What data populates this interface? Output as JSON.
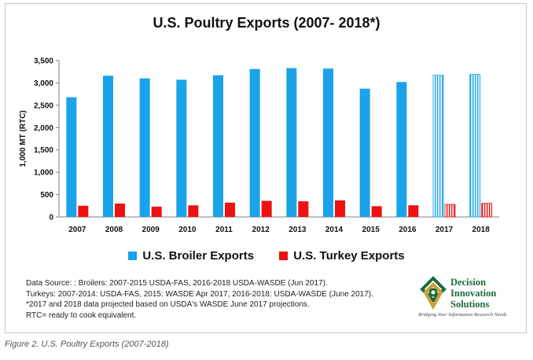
{
  "title": "U.S. Poultry Exports (2007- 2018*)",
  "chart_data": {
    "type": "bar",
    "title": "U.S. Poultry Exports (2007- 2018*)",
    "xlabel": "",
    "ylabel": "1,000 MT (RTC)",
    "ylim": [
      0,
      3500
    ],
    "yticks": [
      0,
      500,
      1000,
      1500,
      2000,
      2500,
      3000,
      3500
    ],
    "ytick_labels": [
      "0",
      "500",
      "1,000",
      "1,500",
      "2,000",
      "2,500",
      "3,000",
      "3,500"
    ],
    "categories": [
      "2007",
      "2008",
      "2009",
      "2010",
      "2011",
      "2012",
      "2013",
      "2014",
      "2015",
      "2016",
      "2017",
      "2018"
    ],
    "projected_categories": [
      "2017",
      "2018"
    ],
    "grid": false,
    "legend": "bottom",
    "series": [
      {
        "name": "U.S. Broiler Exports",
        "color": "#1aa3e8",
        "values": [
          2680,
          3160,
          3100,
          3070,
          3170,
          3310,
          3330,
          3320,
          2870,
          3020,
          3170,
          3190
        ]
      },
      {
        "name": "U.S. Turkey Exports",
        "color": "#ee1111",
        "values": [
          250,
          300,
          230,
          260,
          320,
          360,
          350,
          370,
          240,
          260,
          280,
          305
        ]
      }
    ]
  },
  "notes": [
    "Data Source: : Broilers: 2007-2015 USDA-FAS, 2016-2018 USDA-WASDE (Jun 2017).",
    "Turkeys: 2007-2014: USDA-FAS, 2015: WASDE Apr 2017, 2016-2018: USDA-WASDE (June 2017).",
    "*2017 and 2018 data projected based on USDA's WASDE June 2017 projections.",
    "RTC= ready to cook equivalent."
  ],
  "logo": {
    "line1": "Decision",
    "line2": "Innovation",
    "line3": "Solutions",
    "tagline": "Bridging Your Information Research Needs",
    "color": "#1e6b3a",
    "accent": "#c8a13a"
  },
  "caption": "Figure 2. U.S. Poultry Exports (2007-2018)"
}
